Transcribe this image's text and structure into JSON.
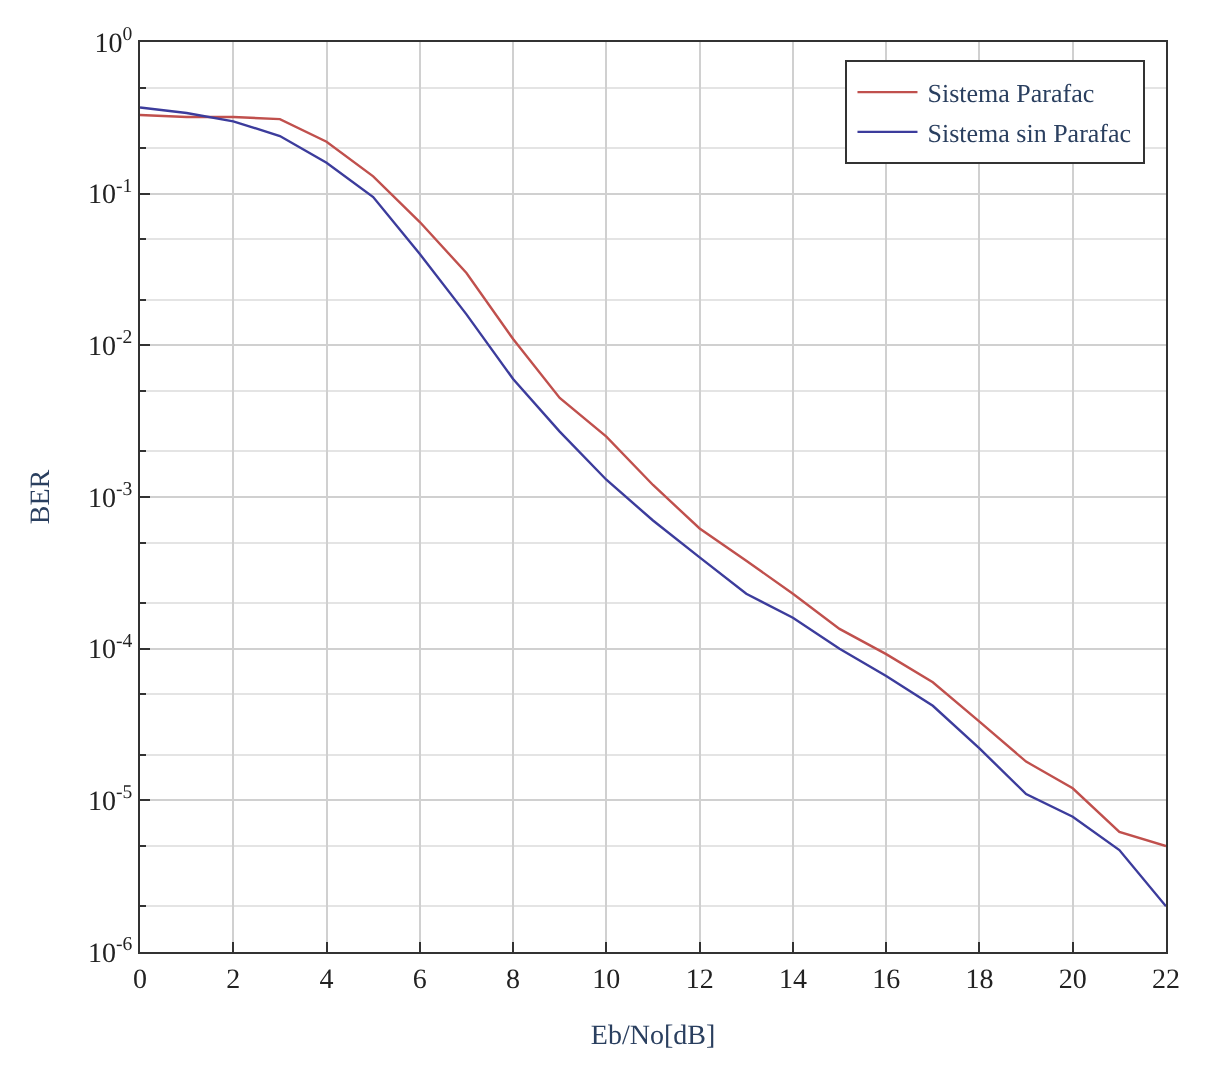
{
  "chart_data": {
    "type": "line",
    "xlabel": "Eb/No[dB]",
    "ylabel": "BER",
    "log": "y",
    "grid": true,
    "legend": "top right",
    "marker": "none",
    "line_style": "solid",
    "x": [
      0,
      1,
      2,
      3,
      4,
      5,
      6,
      7,
      8,
      9,
      10,
      11,
      12,
      13,
      14,
      15,
      16,
      17,
      18,
      19,
      20,
      21,
      22
    ],
    "xlim": [
      0,
      22
    ],
    "xticks": [
      0,
      2,
      4,
      6,
      8,
      10,
      12,
      14,
      16,
      18,
      20,
      22
    ],
    "ylim": [
      1e-06,
      1
    ],
    "yticks": [
      {
        "value": 1e-06,
        "label": "10$^{-6}$"
      },
      {
        "value": 1e-05,
        "label": "10$^{-5}$"
      },
      {
        "value": 0.0001,
        "label": "10$^{-4}$"
      },
      {
        "value": 0.001,
        "label": "10$^{-3}$"
      },
      {
        "value": 0.01,
        "label": "10$^{-2}$"
      },
      {
        "value": 0.1,
        "label": "10$^{-1}$"
      },
      {
        "value": 1,
        "label": "10$^{0}$"
      }
    ],
    "series": [
      {
        "name": "Sistema Parafac",
        "color": "#c0504d",
        "values": [
          0.33,
          0.32,
          0.32,
          0.31,
          0.22,
          0.13,
          0.065,
          0.03,
          0.011,
          0.0045,
          0.0025,
          0.0012,
          0.00062,
          0.00038,
          0.00023,
          0.000135,
          9.2e-05,
          6e-05,
          3.3e-05,
          1.8e-05,
          1.2e-05,
          6.2e-06,
          5e-06
        ]
      },
      {
        "name": "Sistema sin Parafac",
        "color": "#3c3c9c",
        "values": [
          0.37,
          0.34,
          0.3,
          0.24,
          0.16,
          0.095,
          0.04,
          0.016,
          0.006,
          0.0027,
          0.0013,
          0.0007,
          0.0004,
          0.00023,
          0.00016,
          0.0001,
          6.6e-05,
          4.2e-05,
          2.2e-05,
          1.1e-05,
          7.8e-06,
          4.7e-06,
          2e-06
        ]
      }
    ]
  }
}
